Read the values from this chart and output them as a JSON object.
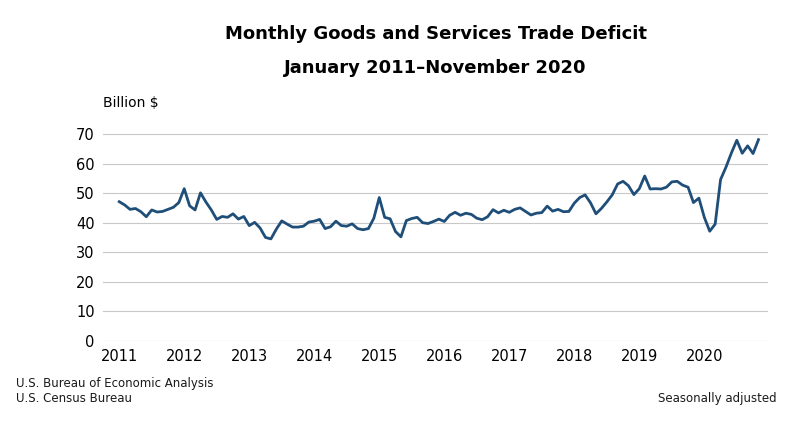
{
  "title_line1": "Monthly Goods and Services Trade Deficit",
  "title_line2": "January 2011–November 2020",
  "ylabel": "Billion $",
  "ylim": [
    0,
    75
  ],
  "yticks": [
    0,
    10,
    20,
    30,
    40,
    50,
    60,
    70
  ],
  "xtick_years": [
    2011,
    2012,
    2013,
    2014,
    2015,
    2016,
    2017,
    2018,
    2019,
    2020
  ],
  "line_color": "#1F4E79",
  "line_width": 2.0,
  "footer_left": [
    "U.S. Bureau of Economic Analysis",
    "U.S. Census Bureau"
  ],
  "footer_right": "Seasonally adjusted",
  "values": [
    47.1,
    46.0,
    44.5,
    44.8,
    43.7,
    42.0,
    44.3,
    43.6,
    43.8,
    44.5,
    45.2,
    46.8,
    51.5,
    45.7,
    44.3,
    50.1,
    47.0,
    44.3,
    41.1,
    42.1,
    41.8,
    43.0,
    41.2,
    42.1,
    39.0,
    40.1,
    38.2,
    35.0,
    34.5,
    37.8,
    40.6,
    39.5,
    38.5,
    38.5,
    38.8,
    40.2,
    40.5,
    41.1,
    38.0,
    38.6,
    40.5,
    39.0,
    38.8,
    39.6,
    38.0,
    37.6,
    38.0,
    41.5,
    48.5,
    41.8,
    41.3,
    37.0,
    35.2,
    40.7,
    41.4,
    41.8,
    40.0,
    39.7,
    40.4,
    41.2,
    40.4,
    42.5,
    43.5,
    42.5,
    43.2,
    42.8,
    41.5,
    41.0,
    42.0,
    44.4,
    43.3,
    44.2,
    43.5,
    44.5,
    45.0,
    43.8,
    42.6,
    43.2,
    43.4,
    45.6,
    43.9,
    44.5,
    43.7,
    43.8,
    46.6,
    48.5,
    49.4,
    46.7,
    43.0,
    44.8,
    47.0,
    49.4,
    53.1,
    54.0,
    52.5,
    49.5,
    51.5,
    55.8,
    51.4,
    51.5,
    51.4,
    52.0,
    53.8,
    54.0,
    52.7,
    52.0,
    46.8,
    48.3,
    41.8,
    37.1,
    39.5,
    54.6,
    58.8,
    63.6,
    67.9,
    63.5,
    66.0,
    63.4,
    68.1
  ]
}
